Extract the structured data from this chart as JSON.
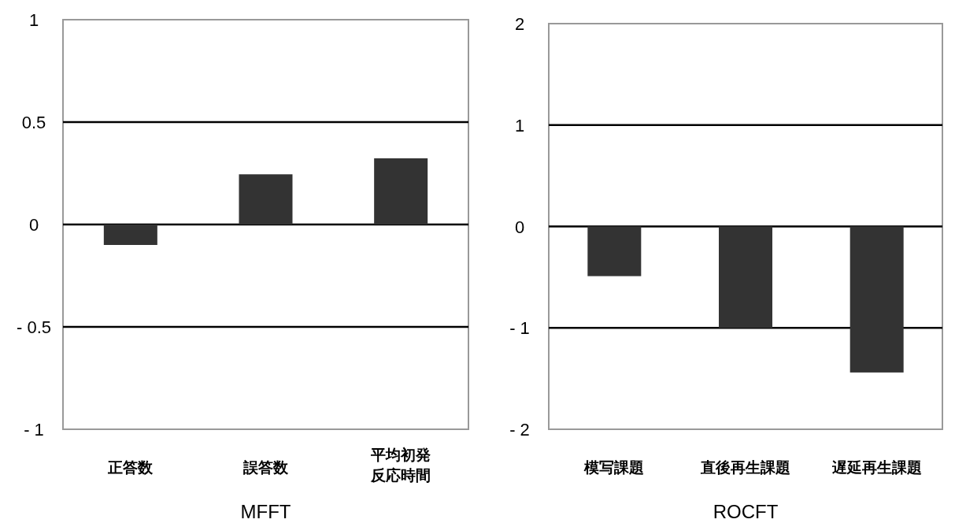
{
  "chart_data": [
    {
      "type": "bar",
      "xlabel": "MFFT",
      "categories": [
        "正答数",
        "誤答数",
        "平均初発反応時間"
      ],
      "values": [
        -0.1,
        0.245,
        0.323
      ],
      "color": "#333333",
      "ylim": [
        -1,
        1
      ],
      "yticks": [
        {
          "value": -1,
          "label": "- 1"
        },
        {
          "value": -0.5,
          "label": "- 0.5"
        },
        0,
        0.5,
        1
      ],
      "grid": "y"
    },
    {
      "type": "bar",
      "xlabel": "ROCFT",
      "categories": [
        "模写課題",
        "直後再生課題",
        "遅延再生課題"
      ],
      "values": [
        -0.49,
        -1.0,
        -1.44
      ],
      "color": "#333333",
      "ylim": [
        -2,
        2
      ],
      "yticks": [
        {
          "value": -2,
          "label": "- 2"
        },
        {
          "value": -1,
          "label": "- 1"
        },
        0,
        1,
        2
      ],
      "grid": "y"
    }
  ]
}
